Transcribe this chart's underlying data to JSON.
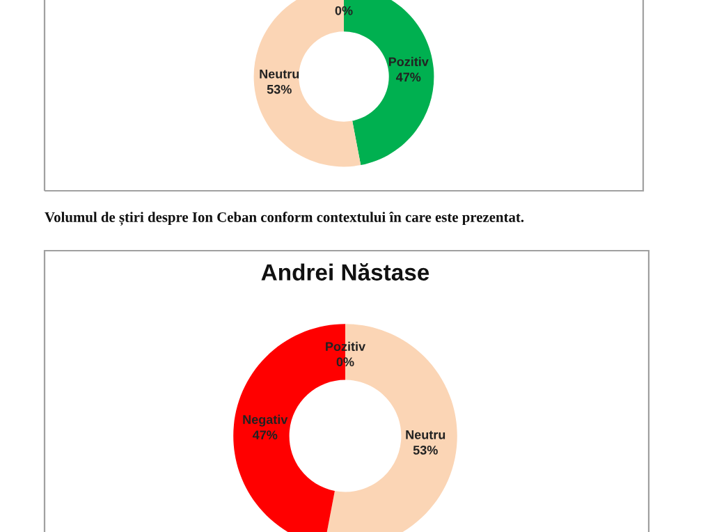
{
  "chart_data": [
    {
      "type": "donut",
      "categories": [
        "Pozitiv",
        "Neutru",
        null
      ],
      "values": [
        47,
        53,
        0
      ],
      "value_labels": [
        "47%",
        "53%",
        "0%"
      ],
      "colors": [
        "#00b050",
        "#fbd5b5",
        "#ff0000"
      ],
      "annotations": [
        "Volumul de știri despre Ion Ceban conform contextului în care este prezentat."
      ]
    },
    {
      "type": "donut",
      "title": "Andrei Năstase",
      "categories": [
        "Pozitiv",
        "Neutru",
        "Negativ"
      ],
      "values": [
        0,
        53,
        47
      ],
      "value_labels": [
        "0%",
        "53%",
        "47%"
      ],
      "colors": [
        "#00b050",
        "#fbd5b5",
        "#ff0000"
      ]
    }
  ]
}
